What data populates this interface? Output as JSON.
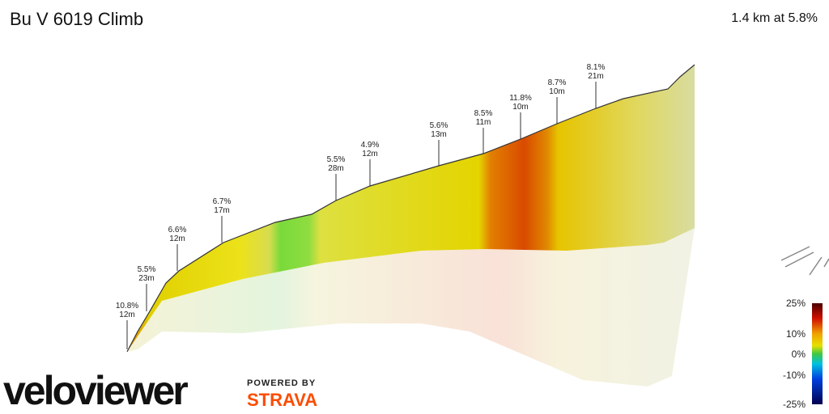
{
  "header": {
    "title": "Bu V 6019 Climb",
    "summary": "1.4 km at 5.8%"
  },
  "segments": [
    {
      "grade": "10.8%",
      "length": "12m"
    },
    {
      "grade": "5.5%",
      "length": "23m"
    },
    {
      "grade": "6.6%",
      "length": "12m"
    },
    {
      "grade": "6.7%",
      "length": "17m"
    },
    {
      "grade": "5.5%",
      "length": "28m"
    },
    {
      "grade": "4.9%",
      "length": "12m"
    },
    {
      "grade": "5.6%",
      "length": "13m"
    },
    {
      "grade": "8.5%",
      "length": "11m"
    },
    {
      "grade": "11.8%",
      "length": "10m"
    },
    {
      "grade": "8.7%",
      "length": "10m"
    },
    {
      "grade": "8.1%",
      "length": "21m"
    }
  ],
  "legend": {
    "labels": [
      "25%",
      "10%",
      "0%",
      "-10%",
      "-25%"
    ]
  },
  "branding": {
    "logo": "veloviewer",
    "powered": "POWERED BY",
    "partner": "STRAVA"
  }
}
